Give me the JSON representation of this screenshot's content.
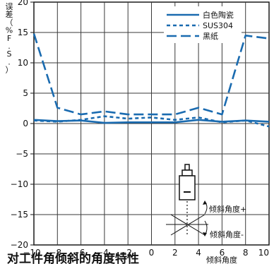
{
  "chart_data": {
    "type": "line",
    "ylabel": "误差（%F.S.）",
    "xlabel": "",
    "xlim": [
      -10,
      10
    ],
    "ylim": [
      -20,
      20
    ],
    "x_ticks": [
      -10,
      -8,
      -6,
      -4,
      -2,
      0,
      2,
      4,
      6,
      8,
      10
    ],
    "y_ticks": [
      -20,
      -15,
      -10,
      -5,
      0,
      5,
      10,
      15,
      20
    ],
    "grid": true,
    "legend_position": "top-right",
    "series": [
      {
        "name": "白色陶瓷",
        "style": "solid",
        "color": "#1a6bb0",
        "points": [
          [
            -10,
            0.6
          ],
          [
            -8,
            0.4
          ],
          [
            -6,
            0.5
          ],
          [
            -4,
            0.1
          ],
          [
            -2,
            0.2
          ],
          [
            0,
            0.2
          ],
          [
            2,
            0.2
          ],
          [
            4,
            0.6
          ],
          [
            6,
            0.3
          ],
          [
            8,
            0.5
          ],
          [
            10,
            0.3
          ]
        ]
      },
      {
        "name": "SUS304",
        "style": "dotted",
        "color": "#1a6bb0",
        "points": [
          [
            -10,
            0.5
          ],
          [
            -8,
            0.3
          ],
          [
            -6,
            0.6
          ],
          [
            -4,
            1.2
          ],
          [
            -2,
            0.8
          ],
          [
            0,
            1.0
          ],
          [
            2,
            0.6
          ],
          [
            4,
            1.0
          ],
          [
            6,
            0.2
          ],
          [
            8,
            0.5
          ],
          [
            10,
            -0.5
          ]
        ]
      },
      {
        "name": "黑纸",
        "style": "dashed",
        "color": "#1a6bb0",
        "points": [
          [
            -10,
            14.8
          ],
          [
            -8,
            2.6
          ],
          [
            -6,
            1.5
          ],
          [
            -4,
            2.0
          ],
          [
            -2,
            1.5
          ],
          [
            0,
            1.5
          ],
          [
            2,
            1.5
          ],
          [
            4,
            2.6
          ],
          [
            6,
            1.5
          ],
          [
            8,
            14.5
          ],
          [
            10,
            14.0
          ]
        ]
      }
    ],
    "annotations": {
      "tilt_plus": "倾斜角度+",
      "tilt_minus": "倾斜角度-"
    },
    "caption": "对工件角倾斜的角度特性",
    "caption_secondary": "倾斜角度"
  }
}
